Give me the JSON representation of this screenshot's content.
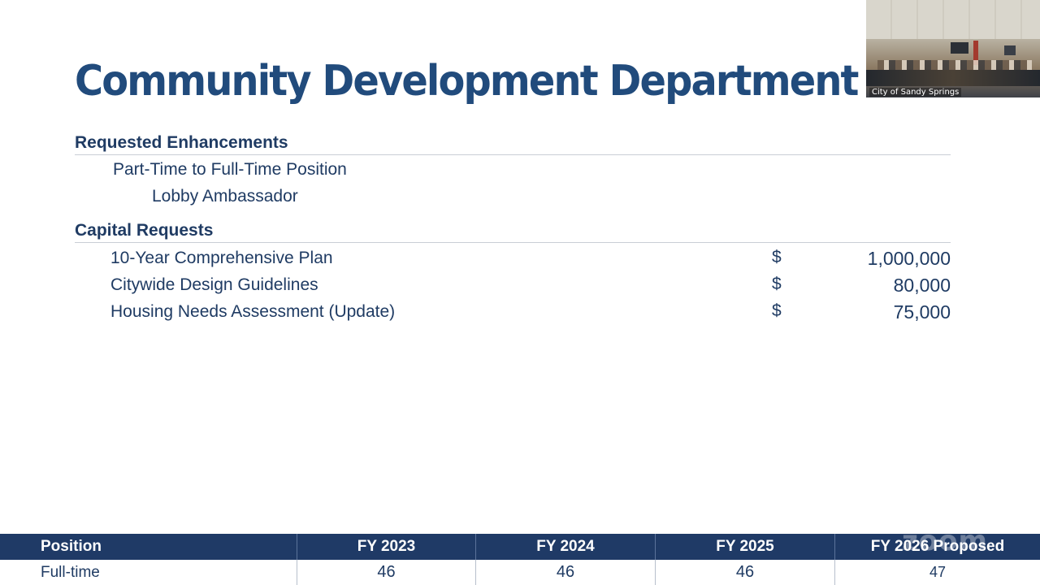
{
  "slide": {
    "title": "Community Development Department",
    "enhancements": {
      "heading": "Requested Enhancements",
      "items": [
        "Part-Time to Full-Time Position",
        "Lobby Ambassador"
      ]
    },
    "capital": {
      "heading": "Capital Requests",
      "items": [
        {
          "label": "10-Year Comprehensive Plan",
          "currency": "$",
          "amount": "1,000,000"
        },
        {
          "label": "Citywide Design Guidelines",
          "currency": "$",
          "amount": "80,000"
        },
        {
          "label": "Housing Needs Assessment (Update)",
          "currency": "$",
          "amount": "75,000"
        }
      ]
    },
    "positions_table": {
      "headers": [
        "Position",
        "FY 2023",
        "FY 2024",
        "FY 2025",
        "FY 2026 Proposed"
      ],
      "rows": [
        {
          "label": "Full-time",
          "values": [
            "46",
            "46",
            "46",
            "47"
          ]
        }
      ]
    }
  },
  "webcam": {
    "label": "City of Sandy Springs"
  },
  "watermark": "zoom",
  "colors": {
    "title": "#214b7c",
    "table_header": "#1f3a66",
    "text": "#1f3b63"
  }
}
